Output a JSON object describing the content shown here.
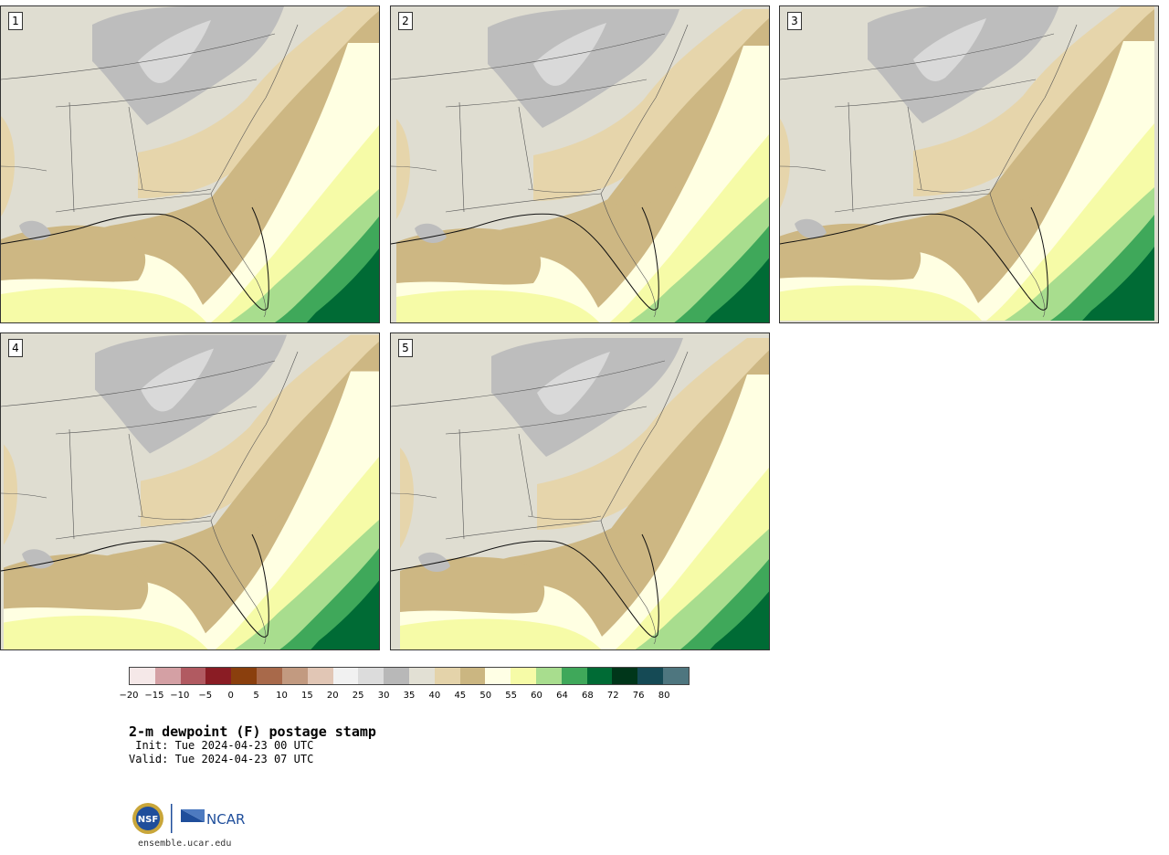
{
  "panels": [
    {
      "label": "1"
    },
    {
      "label": "2"
    },
    {
      "label": "3"
    },
    {
      "label": "4"
    },
    {
      "label": "5"
    }
  ],
  "legend": {
    "ticks": [
      "−20",
      "−15",
      "−10",
      "−5",
      "0",
      "5",
      "10",
      "15",
      "20",
      "25",
      "30",
      "35",
      "40",
      "45",
      "50",
      "55",
      "60",
      "64",
      "68",
      "72",
      "76",
      "80"
    ],
    "colors": [
      "#f5e8e8",
      "#d4a0a4",
      "#b15a61",
      "#8a1c24",
      "#8a3f0d",
      "#a8694a",
      "#c29a80",
      "#e1c6b5",
      "#f1f1f1",
      "#dcdcdc",
      "#b8b8b8",
      "#e2e0d4",
      "#e4d3aa",
      "#cbb681",
      "#ffffe5",
      "#f6fba7",
      "#a8dd8e",
      "#3fa85a",
      "#006b35",
      "#00361a",
      "#154a55",
      "#4e767f"
    ]
  },
  "title": "2-m dewpoint (F) postage stamp",
  "init": " Init: Tue 2024-04-23 00 UTC",
  "valid": "Valid: Tue 2024-04-23 07 UTC",
  "footer": "ensemble.ucar.edu",
  "logos": {
    "nsf": "NSF",
    "ncar": "NCAR"
  }
}
